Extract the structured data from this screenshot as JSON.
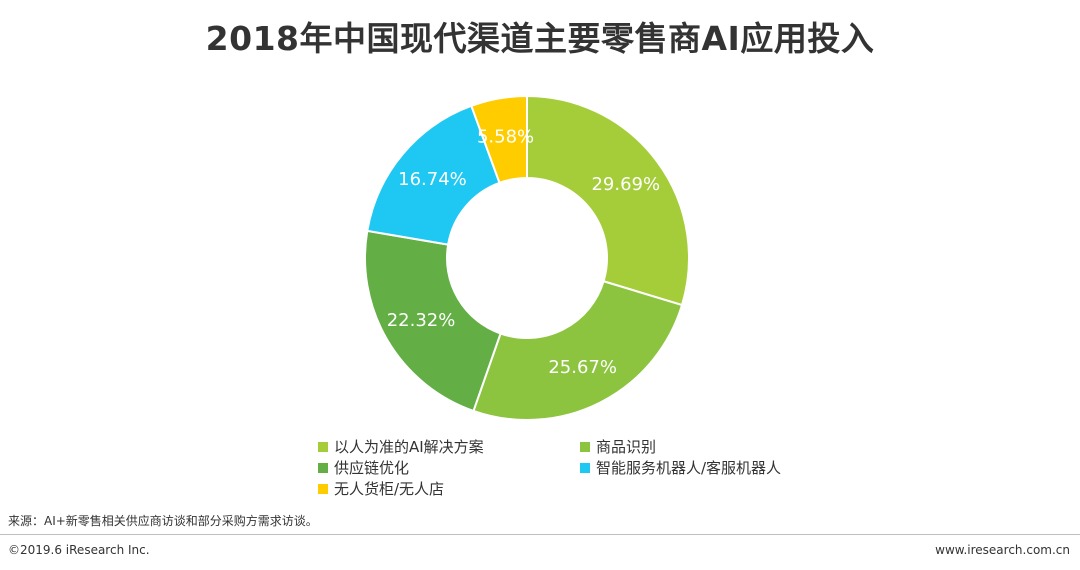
{
  "header": {
    "title": "2018年中国现代渠道主要零售商AI应用投入"
  },
  "chart_data": {
    "type": "pie",
    "title": "2018年中国现代渠道主要零售商AI应用投入",
    "donut": true,
    "value_suffix": "%",
    "legend_position": "bottom",
    "series": [
      {
        "name": "以人为准的AI解决方案",
        "value": 29.69,
        "label": "29.69%",
        "color": "#a5cd39"
      },
      {
        "name": "商品识别",
        "value": 25.67,
        "label": "25.67%",
        "color": "#8cc43f"
      },
      {
        "name": "供应链优化",
        "value": 22.32,
        "label": "22.32%",
        "color": "#63ae45"
      },
      {
        "name": "智能服务机器人/客服机器人",
        "value": 16.74,
        "label": "16.74%",
        "color": "#1fc8f2"
      },
      {
        "name": "无人货柜/无人店",
        "value": 5.58,
        "label": "5.58%",
        "color": "#ffcc00"
      }
    ]
  },
  "legend": {
    "items": [
      {
        "label": "以人为准的AI解决方案",
        "color": "#a5cd39"
      },
      {
        "label": "商品识别",
        "color": "#8cc43f"
      },
      {
        "label": "供应链优化",
        "color": "#63ae45"
      },
      {
        "label": "智能服务机器人/客服机器人",
        "color": "#1fc8f2"
      },
      {
        "label": "无人货柜/无人店",
        "color": "#ffcc00"
      }
    ]
  },
  "source": {
    "text": "来源：AI+新零售相关供应商访谈和部分采购方需求访谈。"
  },
  "footer": {
    "copyright": "©2019.6 iResearch Inc.",
    "website": "www.iresearch.com.cn"
  }
}
